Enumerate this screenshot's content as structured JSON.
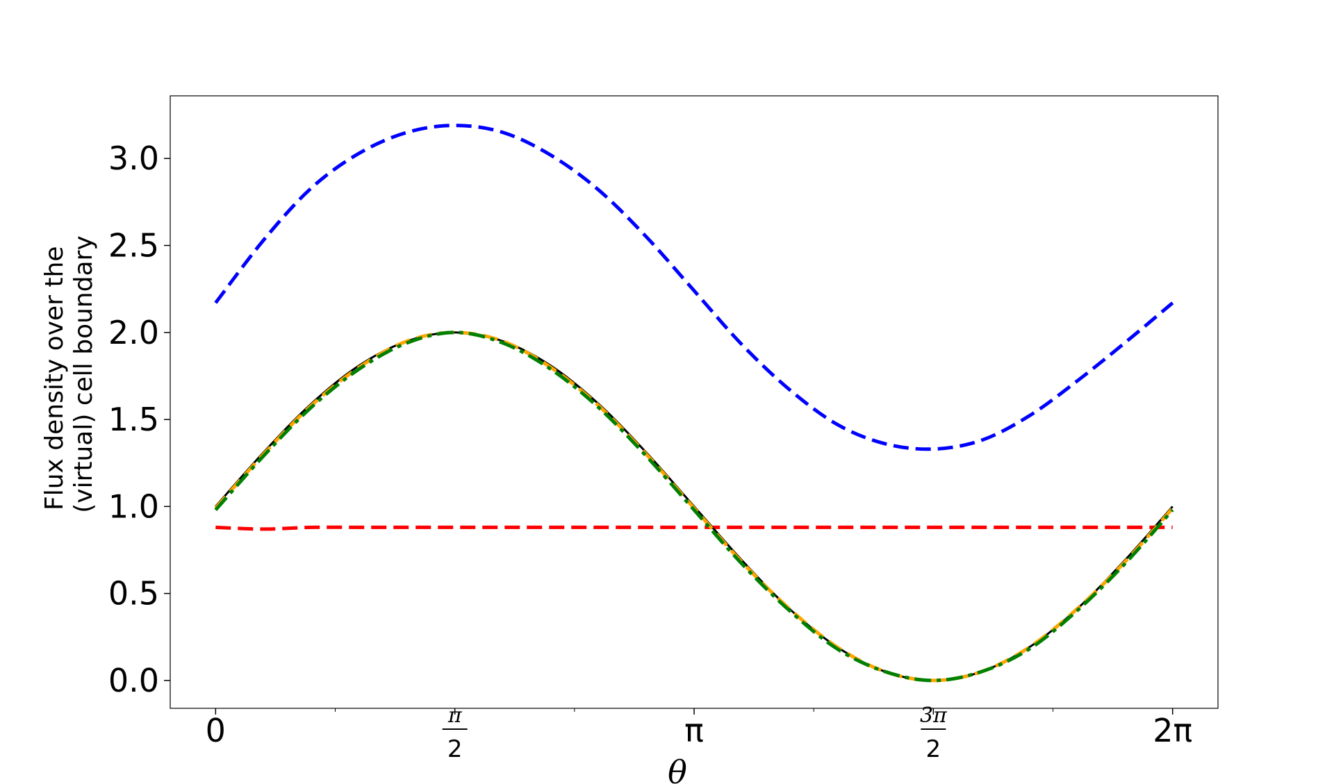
{
  "chart_data": {
    "type": "line",
    "xlabel": "θ",
    "ylabel_lines": [
      "Flux density over the",
      "(virtual) cell boundary"
    ],
    "xlim": [
      -0.298,
      6.581
    ],
    "ylim": [
      -0.16,
      3.36
    ],
    "grid": false,
    "legend": "none",
    "x_ticks": [
      {
        "value": 0,
        "label": "0",
        "kind": "plain"
      },
      {
        "value": 1.5708,
        "label": "π/2",
        "kind": "frac",
        "num": "π",
        "den": "2"
      },
      {
        "value": 3.1416,
        "label": "π",
        "kind": "plain"
      },
      {
        "value": 4.7124,
        "label": "3π/2",
        "kind": "frac",
        "num": "3π",
        "den": "2"
      },
      {
        "value": 6.2832,
        "label": "2π",
        "kind": "plain"
      }
    ],
    "x_minor_ticks": [
      0.7854,
      2.3562,
      3.927,
      5.4978
    ],
    "y_ticks": [
      {
        "value": 0.0,
        "label": "0.0"
      },
      {
        "value": 0.5,
        "label": "0.5"
      },
      {
        "value": 1.0,
        "label": "1.0"
      },
      {
        "value": 1.5,
        "label": "1.5"
      },
      {
        "value": 2.0,
        "label": "2.0"
      },
      {
        "value": 2.5,
        "label": "2.5"
      },
      {
        "value": 3.0,
        "label": "3.0"
      }
    ],
    "x": [
      0.0,
      0.3142,
      0.6283,
      0.9425,
      1.2566,
      1.5708,
      1.885,
      2.1991,
      2.5133,
      2.8274,
      3.1416,
      3.4558,
      3.7699,
      4.0841,
      4.3982,
      4.7124,
      5.0265,
      5.3407,
      5.6549,
      5.969,
      6.2832
    ],
    "series": [
      {
        "color": "#0000ff",
        "style": "dashed",
        "values": [
          2.17,
          2.53,
          2.83,
          3.03,
          3.15,
          3.19,
          3.15,
          3.02,
          2.82,
          2.55,
          2.24,
          1.93,
          1.67,
          1.47,
          1.36,
          1.33,
          1.38,
          1.52,
          1.72,
          1.94,
          2.17
        ]
      },
      {
        "color": "#ff0000",
        "style": "dashed",
        "values": [
          0.88,
          0.87,
          0.88,
          0.88,
          0.88,
          0.88,
          0.88,
          0.88,
          0.88,
          0.88,
          0.88,
          0.88,
          0.88,
          0.88,
          0.88,
          0.88,
          0.88,
          0.88,
          0.88,
          0.88,
          0.88
        ]
      },
      {
        "color": "#000000",
        "style": "solid",
        "values": [
          1.0,
          1.31,
          1.59,
          1.81,
          1.95,
          2.0,
          1.95,
          1.81,
          1.59,
          1.31,
          1.0,
          0.69,
          0.41,
          0.19,
          0.05,
          0.0,
          0.05,
          0.19,
          0.41,
          0.69,
          1.0
        ]
      },
      {
        "color": "#ffa500",
        "style": "dashed",
        "values": [
          0.99,
          1.3,
          1.58,
          1.8,
          1.95,
          2.0,
          1.95,
          1.8,
          1.58,
          1.3,
          0.99,
          0.68,
          0.41,
          0.19,
          0.05,
          0.0,
          0.05,
          0.19,
          0.41,
          0.68,
          0.99
        ]
      },
      {
        "color": "#008000",
        "style": "dashdot",
        "values": [
          0.98,
          1.29,
          1.57,
          1.79,
          1.94,
          2.0,
          1.94,
          1.79,
          1.57,
          1.29,
          0.98,
          0.67,
          0.4,
          0.18,
          0.05,
          0.0,
          0.05,
          0.18,
          0.4,
          0.67,
          0.98
        ]
      }
    ]
  }
}
